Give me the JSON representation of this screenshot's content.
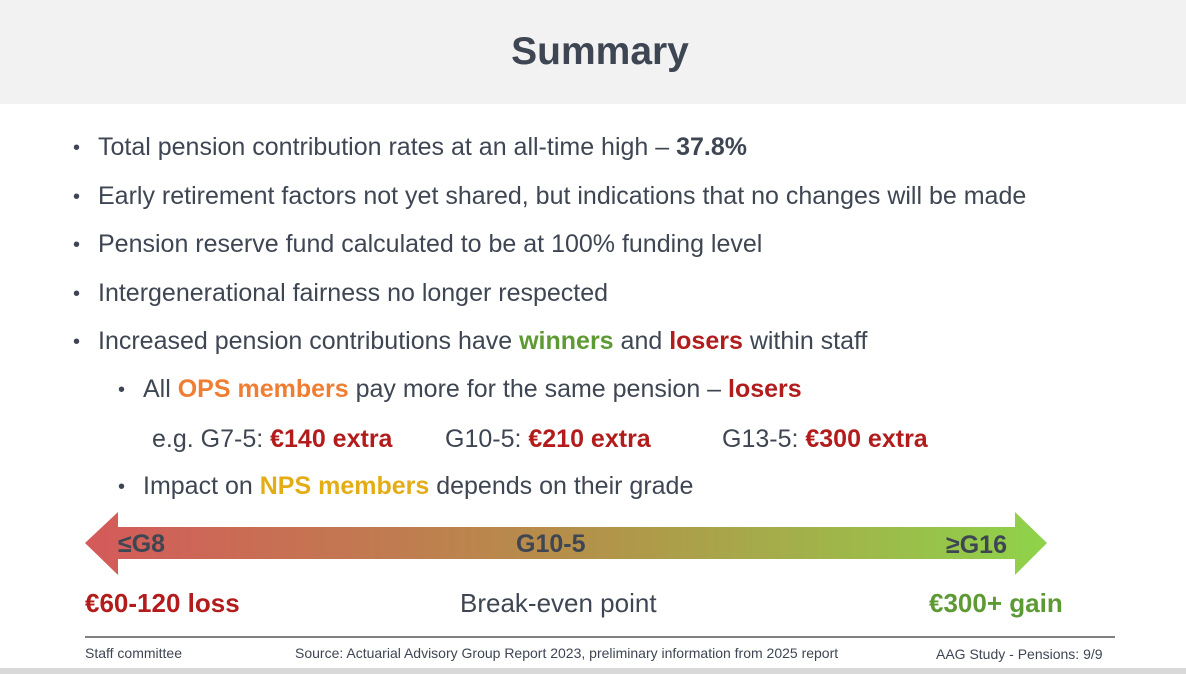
{
  "title": "Summary",
  "bullets": [
    {
      "pre": "Total pension contribution rates at an all-time high – ",
      "bold": "37.8%"
    },
    {
      "text": "Early retirement factors not yet shared, but indications that no changes will be made"
    },
    {
      "text": "Pension reserve fund calculated to be at 100% funding level"
    },
    {
      "text": "Intergenerational fairness no longer respected"
    },
    {
      "pre": "Increased pension contributions have ",
      "winners": "winners",
      "mid": " and ",
      "losers": "losers",
      "post": " within staff"
    }
  ],
  "sub_bullets": {
    "ops": {
      "pre": "All ",
      "highlight": "OPS members",
      "mid": " pay more for the same pension – ",
      "losers": "losers"
    },
    "examples": [
      {
        "label": "e.g. G7-5: ",
        "value": "€140 extra"
      },
      {
        "label": "G10-5: ",
        "value": "€210 extra"
      },
      {
        "label": "G13-5: ",
        "value": "€300 extra"
      }
    ],
    "nps": {
      "pre": "Impact on ",
      "highlight": "NPS members",
      "post": " depends on their grade"
    }
  },
  "scale": {
    "left_grade": "≤G8",
    "mid_grade": "G10-5",
    "right_grade": "≥G16",
    "left_outcome": "€60-120 loss",
    "mid_outcome": "Break-even point",
    "right_outcome": "€300+ gain",
    "colors": {
      "loss": "#d45a5a",
      "gain": "#8fd34a"
    }
  },
  "footer": {
    "left": "Staff committee",
    "center": "Source: Actuarial Advisory Group Report 2023, preliminary information from 2025 report",
    "right": "AAG Study - Pensions: 9/9"
  }
}
